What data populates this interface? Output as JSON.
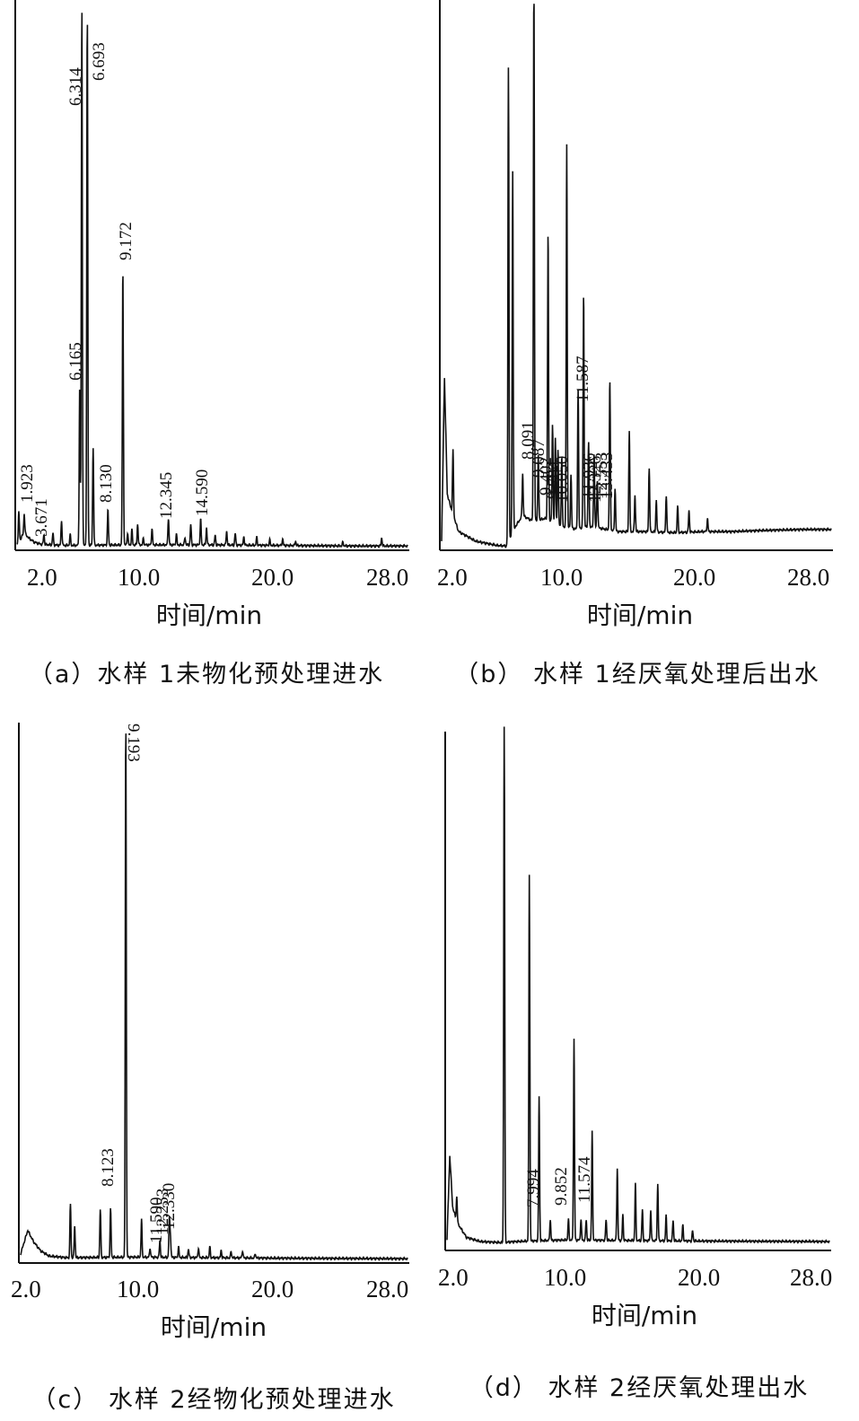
{
  "chart_data": [
    {
      "type": "line",
      "caption": "（a）水样 1未物化预处理进水",
      "xlabel": "时间/min",
      "xticks": [
        "2.0",
        "10.0",
        "20.0",
        "28.0"
      ],
      "xlim": [
        1.8,
        29.0
      ],
      "ylim": [
        0,
        100
      ],
      "peak_labels": [
        "1.923",
        "3.671",
        "6.165",
        "6.314",
        "6.693",
        "8.130",
        "9.172",
        "12.345",
        "14.590"
      ],
      "series": [
        {
          "baseline": [
            [
              1.8,
              0.8
            ],
            [
              2.0,
              1.4
            ],
            [
              2.3,
              2.8
            ],
            [
              2.6,
              1.8
            ],
            [
              3.0,
              1.0
            ],
            [
              3.5,
              0.6
            ],
            [
              5,
              0.4
            ],
            [
              10,
              0.5
            ],
            [
              15,
              0.5
            ],
            [
              20,
              0.4
            ],
            [
              25,
              0.3
            ],
            [
              29,
              0.3
            ]
          ],
          "peaks": [
            [
              1.923,
              5.5
            ],
            [
              2.3,
              3.5
            ],
            [
              3.671,
              1.8
            ],
            [
              4.3,
              2.2
            ],
            [
              4.9,
              4.6
            ],
            [
              5.5,
              2.0
            ],
            [
              6.165,
              29
            ],
            [
              6.314,
              100
            ],
            [
              6.693,
              98
            ],
            [
              7.1,
              18
            ],
            [
              8.13,
              6.5
            ],
            [
              9.172,
              51
            ],
            [
              9.5,
              2.2
            ],
            [
              9.8,
              2.8
            ],
            [
              10.2,
              3.8
            ],
            [
              10.6,
              1.2
            ],
            [
              11.2,
              3.0
            ],
            [
              12.345,
              5.0
            ],
            [
              12.9,
              2.0
            ],
            [
              13.5,
              1.4
            ],
            [
              13.9,
              3.8
            ],
            [
              14.59,
              4.8
            ],
            [
              15.0,
              3.2
            ],
            [
              15.6,
              1.8
            ],
            [
              16.4,
              2.6
            ],
            [
              17.0,
              2.2
            ],
            [
              17.6,
              1.6
            ],
            [
              18.5,
              1.5
            ],
            [
              19.4,
              1.0
            ],
            [
              20.3,
              1.2
            ],
            [
              21.2,
              0.8
            ],
            [
              24.5,
              0.7
            ],
            [
              27.2,
              1.5
            ]
          ]
        }
      ]
    },
    {
      "type": "line",
      "caption": "（b） 水样 1经厌氧处理后出水",
      "xlabel": "时间/min",
      "xticks": [
        "2.0",
        "10.0",
        "20.0",
        "28.0"
      ],
      "xlim": [
        1.6,
        29.0
      ],
      "ylim": [
        0,
        100
      ],
      "peak_labels": [
        "8.091",
        "9.087",
        "9.402",
        "9.784",
        "10.050",
        "11.587",
        "11.936",
        "12.326",
        "12.553",
        "13.433"
      ],
      "series": [
        {
          "baseline": [
            [
              1.6,
              1.2
            ],
            [
              1.8,
              32
            ],
            [
              2.0,
              10
            ],
            [
              2.3,
              7
            ],
            [
              2.8,
              3
            ],
            [
              4,
              1.2
            ],
            [
              5.5,
              0.4
            ],
            [
              6.2,
              0.3
            ],
            [
              6.8,
              4
            ],
            [
              7.3,
              6
            ],
            [
              8,
              5
            ],
            [
              9,
              5.5
            ],
            [
              10,
              4
            ],
            [
              11,
              3.5
            ],
            [
              12,
              4
            ],
            [
              14,
              3
            ],
            [
              16,
              3
            ],
            [
              18,
              2.8
            ],
            [
              20,
              3
            ],
            [
              22,
              3
            ],
            [
              24,
              3.2
            ],
            [
              27,
              3.4
            ],
            [
              29,
              3.4
            ]
          ],
          "peaks": [
            [
              2.4,
              12
            ],
            [
              6.3,
              89
            ],
            [
              6.6,
              68
            ],
            [
              7.3,
              8
            ],
            [
              8.091,
              100
            ],
            [
              8.4,
              12
            ],
            [
              9.087,
              54
            ],
            [
              9.402,
              18
            ],
            [
              9.6,
              16
            ],
            [
              9.784,
              14
            ],
            [
              10.05,
              13
            ],
            [
              10.4,
              72
            ],
            [
              10.7,
              10
            ],
            [
              11.2,
              26
            ],
            [
              11.587,
              44
            ],
            [
              11.936,
              16
            ],
            [
              12.326,
              14
            ],
            [
              12.553,
              9
            ],
            [
              13.433,
              28
            ],
            [
              13.8,
              8
            ],
            [
              14.8,
              19
            ],
            [
              15.2,
              7
            ],
            [
              16.2,
              12
            ],
            [
              16.7,
              6
            ],
            [
              17.4,
              7
            ],
            [
              18.2,
              5
            ],
            [
              19.0,
              4
            ],
            [
              20.3,
              2.5
            ]
          ]
        }
      ]
    },
    {
      "type": "line",
      "caption": "（c） 水样 2经物化预处理进水",
      "xlabel": "时间/min",
      "xticks": [
        "2.0",
        "10.0",
        "20.0",
        "28.0"
      ],
      "xlim": [
        1.8,
        29.0
      ],
      "ylim": [
        0,
        100
      ],
      "peak_labels": [
        "8.123",
        "9.193",
        "11.590",
        "12.253",
        "12.330"
      ],
      "series": [
        {
          "baseline": [
            [
              1.8,
              1.2
            ],
            [
              2.0,
              3
            ],
            [
              2.3,
              5.6
            ],
            [
              2.7,
              3.5
            ],
            [
              3.2,
              1.8
            ],
            [
              3.8,
              0.8
            ],
            [
              5,
              0.5
            ],
            [
              10,
              0.6
            ],
            [
              15,
              0.5
            ],
            [
              20,
              0.4
            ],
            [
              29,
              0.3
            ]
          ],
          "peaks": [
            [
              5.3,
              10
            ],
            [
              5.6,
              6
            ],
            [
              7.4,
              9
            ],
            [
              8.123,
              9
            ],
            [
              9.193,
              100
            ],
            [
              10.3,
              7
            ],
            [
              10.9,
              1.8
            ],
            [
              11.59,
              3.2
            ],
            [
              12.253,
              7
            ],
            [
              12.33,
              4
            ],
            [
              12.9,
              2
            ],
            [
              13.6,
              1.6
            ],
            [
              14.3,
              1.8
            ],
            [
              15.1,
              2
            ],
            [
              15.9,
              1.4
            ],
            [
              16.6,
              1.2
            ],
            [
              17.4,
              1.4
            ],
            [
              18.3,
              0.8
            ]
          ]
        }
      ]
    },
    {
      "type": "line",
      "caption": "（d） 水样 2经厌氧处理出水",
      "xlabel": "时间/min",
      "xticks": [
        "2.0",
        "10.0",
        "20.0",
        "28.0"
      ],
      "xlim": [
        1.6,
        29.0
      ],
      "ylim": [
        0,
        100
      ],
      "peak_labels": [
        "7.994",
        "9.852",
        "11.574"
      ],
      "series": [
        {
          "baseline": [
            [
              1.6,
              1.5
            ],
            [
              1.8,
              18
            ],
            [
              2.0,
              8
            ],
            [
              2.3,
              5
            ],
            [
              3.0,
              2
            ],
            [
              4,
              1.2
            ],
            [
              5.5,
              1.0
            ],
            [
              6.5,
              1.2
            ],
            [
              7.5,
              1.3
            ],
            [
              10,
              1.5
            ],
            [
              15,
              1.4
            ],
            [
              20,
              1.3
            ],
            [
              29,
              1.2
            ]
          ],
          "peaks": [
            [
              2.3,
              5
            ],
            [
              5.7,
              100
            ],
            [
              7.5,
              71
            ],
            [
              8.2,
              28
            ],
            [
              9.0,
              4
            ],
            [
              10.3,
              4
            ],
            [
              10.7,
              39
            ],
            [
              11.2,
              4
            ],
            [
              11.574,
              4
            ],
            [
              12.0,
              21
            ],
            [
              13.0,
              4
            ],
            [
              13.8,
              14
            ],
            [
              14.2,
              5
            ],
            [
              15.1,
              11
            ],
            [
              15.6,
              6
            ],
            [
              16.2,
              6
            ],
            [
              16.7,
              11
            ],
            [
              17.3,
              5
            ],
            [
              17.8,
              4
            ],
            [
              18.5,
              3
            ],
            [
              19.2,
              2
            ]
          ]
        }
      ]
    }
  ]
}
